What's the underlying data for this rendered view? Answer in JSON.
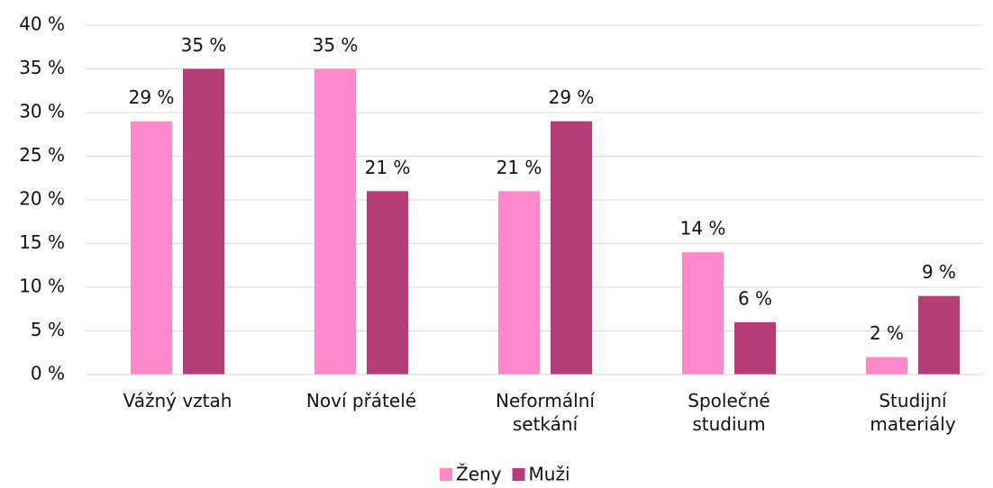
{
  "chart_data": {
    "type": "bar",
    "categories": [
      "Vážný vztah",
      "Noví přátelé",
      "Neformální setkání",
      "Společné studium",
      "Studijní materiály"
    ],
    "series": [
      {
        "name": "Ženy",
        "color": "#ff88cc",
        "values": [
          29,
          35,
          21,
          14,
          2
        ],
        "value_labels": [
          "29 %",
          "35 %",
          "21 %",
          "14 %",
          "2 %"
        ]
      },
      {
        "name": "Muži",
        "color": "#b83c78",
        "values": [
          35,
          21,
          29,
          6,
          9
        ],
        "value_labels": [
          "35 %",
          "21 %",
          "29 %",
          "6 %",
          "9 %"
        ]
      }
    ],
    "ylim": [
      0,
      40
    ],
    "yticks": [
      {
        "value": 0,
        "label": "0 %"
      },
      {
        "value": 5,
        "label": "5 %"
      },
      {
        "value": 10,
        "label": "10 %"
      },
      {
        "value": 15,
        "label": "15 %"
      },
      {
        "value": 20,
        "label": "20 %"
      },
      {
        "value": 25,
        "label": "25 %"
      },
      {
        "value": 30,
        "label": "30 %"
      },
      {
        "value": 35,
        "label": "35 %"
      },
      {
        "value": 40,
        "label": "40 %"
      }
    ],
    "grid": true
  }
}
